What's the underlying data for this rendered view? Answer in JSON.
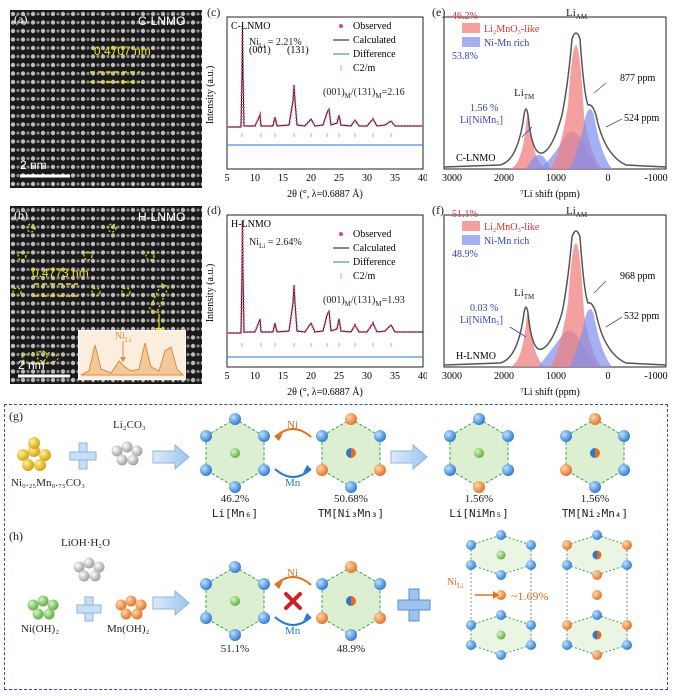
{
  "panel_a": {
    "tag": "(a)",
    "sample": "C-LNMO",
    "spacing": "0.4707 nm",
    "scale": "2 nm"
  },
  "panel_b": {
    "tag": "(b)",
    "sample": "H-LNMO",
    "spacing": "0.4773 nm",
    "scale": "2 nm",
    "inset_label": "Ni",
    "inset_sub": "Li"
  },
  "panel_c": {
    "tag": "(c)",
    "sample": "C-LNMO",
    "ni_li": "Ni",
    "ni_li_sub": "Li",
    "ni_li_val": " = 2.21%",
    "peak1": "(001)",
    "peak2": "(131)",
    "ratio_a": "(001)",
    "ratio_sub1": "M",
    "ratio_mid": "/(131)",
    "ratio_sub2": "M",
    "ratio_val": "=2.16",
    "ylabel": "Intensity (a.u.)",
    "xlabel": "2θ (°, λ=0.6887 Å)",
    "ticks": [
      "5",
      "10",
      "15",
      "20",
      "25",
      "30",
      "35",
      "40"
    ],
    "legend": [
      "Observed",
      "Calculated",
      "Difference",
      "C2/m"
    ]
  },
  "panel_d": {
    "tag": "(d)",
    "sample": "H-LNMO",
    "ni_li": "Ni",
    "ni_li_sub": "Li",
    "ni_li_val": " = 2.64%",
    "ratio_a": "(001)",
    "ratio_sub1": "M",
    "ratio_mid": "/(131)",
    "ratio_sub2": "M",
    "ratio_val": "=1.93",
    "ylabel": "Intensity (a.u.)",
    "xlabel": "2θ (°, λ=0.6887 Å)",
    "ticks": [
      "5",
      "10",
      "15",
      "20",
      "25",
      "30",
      "35",
      "40"
    ],
    "legend": [
      "Observed",
      "Calculated",
      "Difference",
      "C2/m"
    ]
  },
  "panel_e": {
    "tag": "(e)",
    "pct_red": "46.2%",
    "pct_blue": "53.8%",
    "leg_red": "Li₂MnO₃-like",
    "leg_blue": "Ni-Mn rich",
    "li_am": "Li",
    "li_am_sub": "AM",
    "li_tm": "Li",
    "li_tm_sub": "TM",
    "ppm1": "877 ppm",
    "ppm2": "524 ppm",
    "frac": "1.56 %",
    "frac_lbl": "Li[NiMn₅]",
    "sample": "C-LNMO",
    "xlabel": "⁷Li shift (ppm)",
    "ticks": [
      "3000",
      "2000",
      "1000",
      "0",
      "-1000"
    ]
  },
  "panel_f": {
    "tag": "(f)",
    "pct_red": "51.1%",
    "pct_blue": "48.9%",
    "leg_red": "Li₂MnO₃-like",
    "leg_blue": "Ni-Mn rich",
    "li_am": "Li",
    "li_am_sub": "AM",
    "li_tm": "Li",
    "li_tm_sub": "TM",
    "ppm1": "968 ppm",
    "ppm2": "532 ppm",
    "frac": "0.03 %",
    "frac_lbl": "Li[NiMn₅]",
    "sample": "H-LNMO",
    "xlabel": "⁷Li shift (ppm)",
    "ticks": [
      "3000",
      "2000",
      "1000",
      "0",
      "-1000"
    ]
  },
  "panel_g": {
    "tag": "(g)",
    "reagent1": "Li₂CO₃",
    "precursor": "Ni₀.₂₅Mn₀.₇₅CO₃",
    "ni": "Ni",
    "mn": "Mn",
    "p1": "46.2%",
    "l1": "Li[Mn₆]",
    "p2": "50.68%",
    "l2": "TM[Ni₃Mn₃]",
    "p3": "1.56%",
    "l3": "Li[NiMn₅]",
    "p4": "1.56%",
    "l4": "TM[Ni₂Mn₄]"
  },
  "panel_h": {
    "tag": "(h)",
    "reagent1": "LiOH·H₂O",
    "reagent2": "Ni(OH)₂",
    "reagent3": "Mn(OH)₂",
    "ni": "Ni",
    "mn": "Mn",
    "p1": "51.1%",
    "p2": "48.9%",
    "nili": "Ni",
    "nili_sub": "Li",
    "approx": "~1.69%"
  },
  "colors": {
    "observed": "#e8407a",
    "calculated": "#111111",
    "difference": "#2b6fd6",
    "c2m": "#f0a060",
    "red_fill": "#f08080",
    "blue_fill": "#7f8fef",
    "red_text": "#e03030",
    "blue_text": "#3040d0",
    "hex_fill": "#dcefd0",
    "hex_edge": "#3aa050",
    "blue_atom": "#3a8fe0",
    "orange_atom": "#ef8a3a",
    "green_atom": "#7ccb5a"
  }
}
